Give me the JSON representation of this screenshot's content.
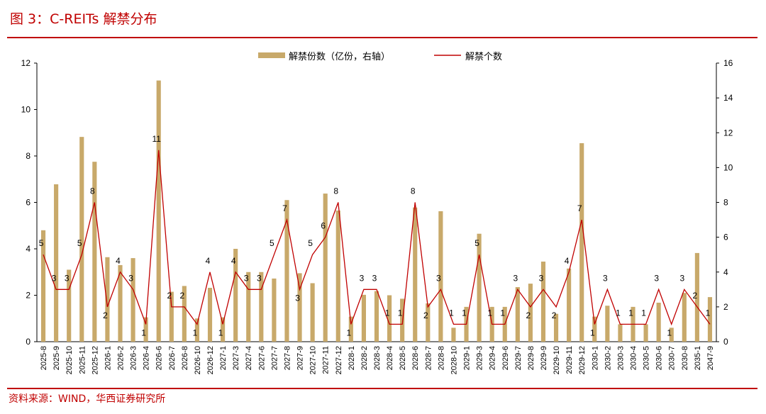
{
  "figure": {
    "title": "图 3：C-REITs 解禁分布",
    "source": "资料来源：WIND，华西证券研究所"
  },
  "colors": {
    "bar": "#c8a96a",
    "line": "#c00000",
    "accent": "#c00000",
    "axis": "#000000"
  },
  "chart_data": {
    "type": "bar",
    "categories": [
      "2025-8",
      "2025-9",
      "2025-10",
      "2025-11",
      "2025-12",
      "2026-1",
      "2026-2",
      "2026-3",
      "2026-4",
      "2026-6",
      "2026-7",
      "2026-8",
      "2026-10",
      "2026-12",
      "2027-1",
      "2027-3",
      "2027-4",
      "2027-6",
      "2027-7",
      "2027-8",
      "2027-9",
      "2027-10",
      "2027-11",
      "2027-12",
      "2028-1",
      "2028-2",
      "2028-3",
      "2028-4",
      "2028-5",
      "2028-6",
      "2028-7",
      "2028-8",
      "2028-10",
      "2029-1",
      "2029-3",
      "2029-4",
      "2029-6",
      "2029-7",
      "2029-8",
      "2029-9",
      "2029-10",
      "2029-11",
      "2029-12",
      "2030-1",
      "2030-2",
      "2030-3",
      "2030-4",
      "2030-5",
      "2030-6",
      "2030-7",
      "2030-8",
      "2035-1",
      "2047-9"
    ],
    "series": [
      {
        "name": "解禁份数（亿份，右轴）",
        "type": "bar",
        "axis": "left",
        "values": [
          4.8,
          6.78,
          3.1,
          8.82,
          7.75,
          3.64,
          3.3,
          3.6,
          1.05,
          11.25,
          2.15,
          2.4,
          1.0,
          2.32,
          1.05,
          4.0,
          3.0,
          3.0,
          2.72,
          6.1,
          2.95,
          2.52,
          6.38,
          5.65,
          1.08,
          2.02,
          2.18,
          2.0,
          1.85,
          5.78,
          1.65,
          5.62,
          0.6,
          1.5,
          4.65,
          1.5,
          1.5,
          2.35,
          2.5,
          3.45,
          1.2,
          3.15,
          8.55,
          1.08,
          1.55,
          0.75,
          1.5,
          0.75,
          1.68,
          0.6,
          2.1,
          3.82,
          1.92
        ]
      },
      {
        "name": "解禁个数",
        "type": "line",
        "axis": "right",
        "values": [
          5,
          3,
          3,
          5,
          8,
          2,
          4,
          3,
          1,
          11,
          2,
          2,
          1,
          4,
          1,
          4,
          3,
          3,
          5,
          7,
          3,
          5,
          6,
          8,
          1,
          3,
          3,
          1,
          1,
          8,
          2,
          3,
          1,
          1,
          5,
          1,
          1,
          3,
          2,
          3,
          2,
          4,
          7,
          1,
          3,
          1,
          1,
          1,
          3,
          1,
          3,
          2,
          1
        ],
        "labels": [
          "5",
          "3",
          "3",
          "5",
          "8",
          "2",
          "4",
          "3",
          "1",
          "11",
          "2",
          "2",
          "1",
          "4",
          "1",
          "4",
          "3",
          "3",
          "5",
          "7",
          "3",
          "5",
          "6",
          "8",
          "1",
          "3",
          "3",
          "1",
          "1",
          "8",
          "2",
          "3",
          "1",
          "1",
          "5",
          "1",
          "1",
          "3",
          "2",
          "3",
          "2",
          "4",
          "7",
          "1",
          "3",
          "1",
          "1",
          "1",
          "3",
          "1",
          "3",
          "2",
          "1"
        ]
      }
    ],
    "y_left": {
      "ylim": [
        0,
        12
      ],
      "ticks": [
        "0",
        "2",
        "4",
        "6",
        "8",
        "10",
        "12"
      ]
    },
    "y_right": {
      "ylim": [
        0,
        16
      ],
      "ticks": [
        "0",
        "2",
        "4",
        "6",
        "8",
        "10",
        "12",
        "14",
        "16"
      ]
    },
    "legend_position": "top-center",
    "grid": false
  }
}
